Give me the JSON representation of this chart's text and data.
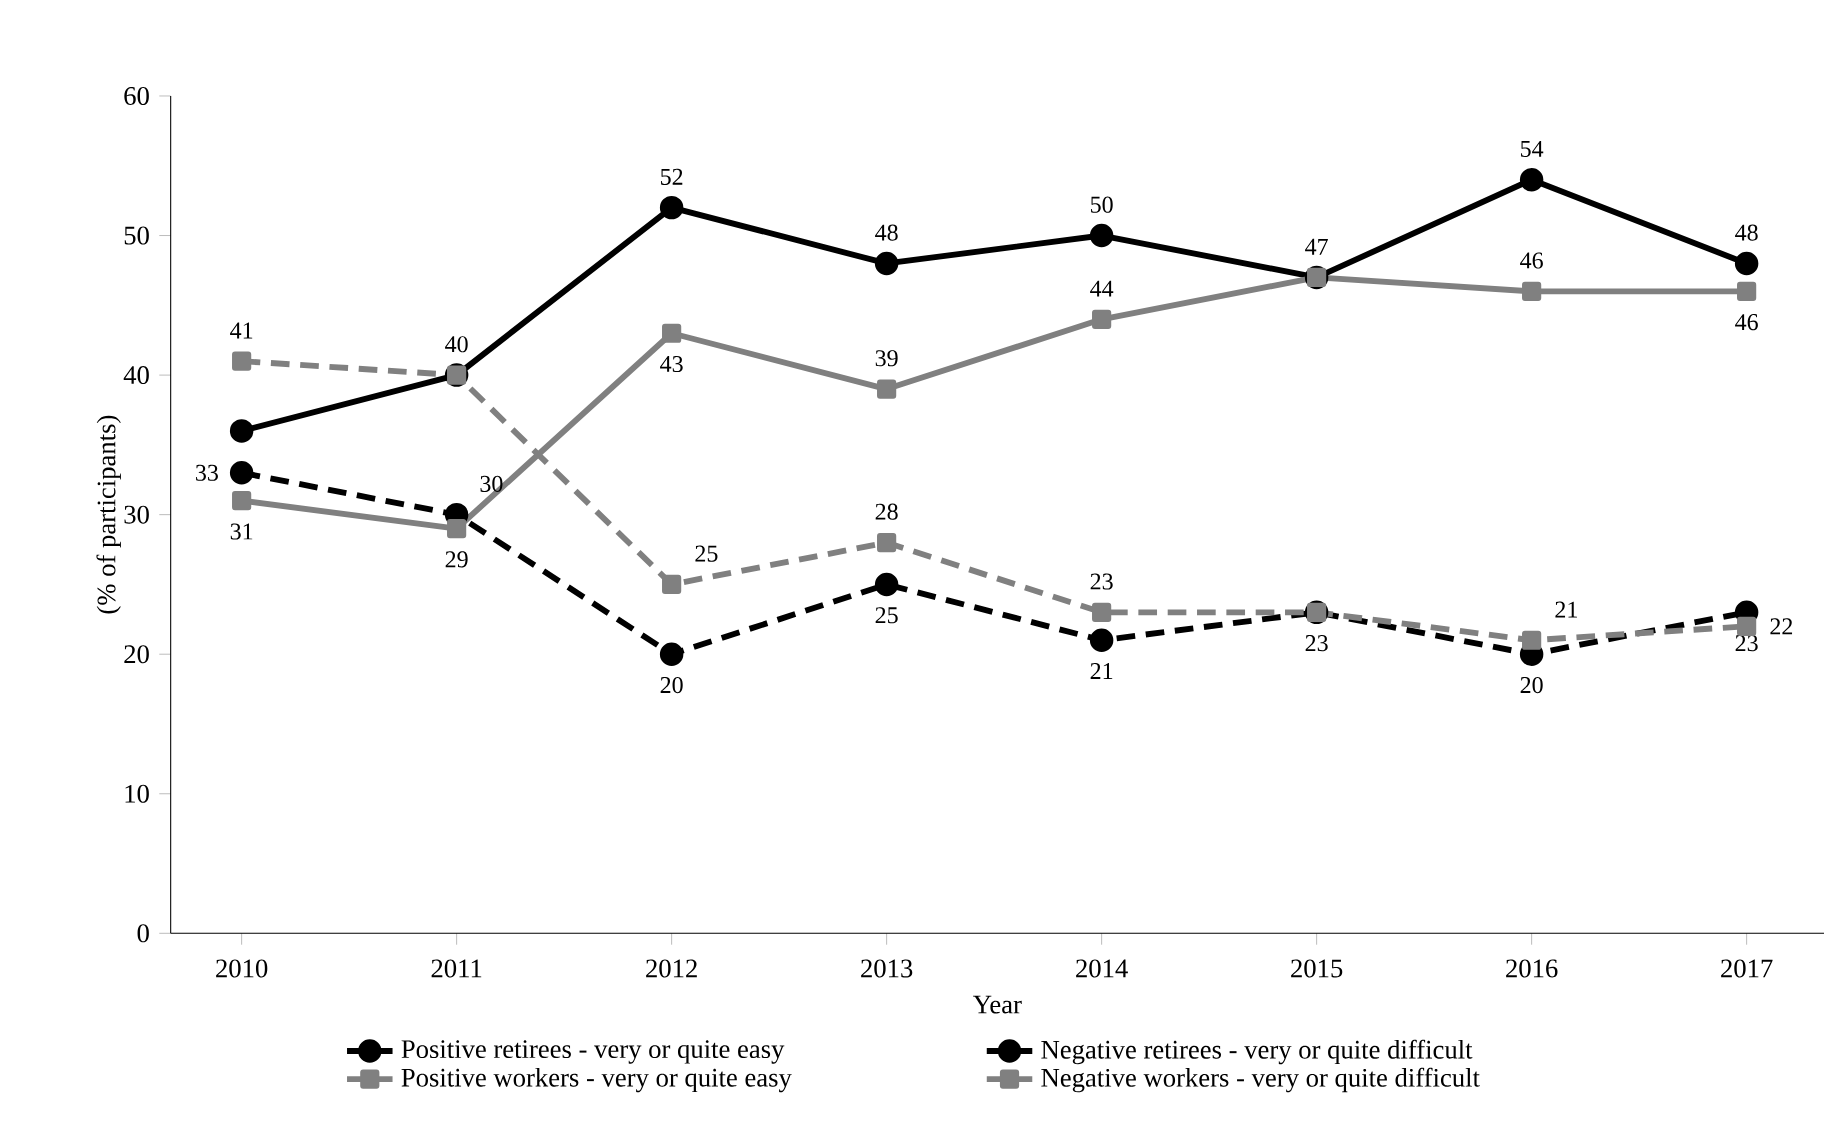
{
  "chart_data": {
    "type": "line",
    "xlabel": "Year",
    "ylabel": "(% of participants)",
    "categories": [
      "2010",
      "2011",
      "2012",
      "2013",
      "2014",
      "2015",
      "2016",
      "2017"
    ],
    "ylim": [
      0,
      60
    ],
    "yticks": [
      0,
      10,
      20,
      30,
      40,
      50,
      60
    ],
    "grid": false,
    "legend": "bottom",
    "series": [
      {
        "name": "Positive retirees - very or quite easy",
        "color": "#000000",
        "marker": "circle",
        "line_style": "solid",
        "values": [
          36,
          40,
          52,
          48,
          50,
          47,
          54,
          48
        ],
        "value_labels": [
          null,
          "40",
          "52",
          "48",
          "50",
          null,
          "54",
          "48"
        ]
      },
      {
        "name": "Negative retirees - very or quite difficult",
        "color": "#000000",
        "marker": "circle",
        "line_style": "dashed",
        "values": [
          33,
          30,
          20,
          25,
          21,
          23,
          20,
          23
        ],
        "value_labels": [
          "33",
          "30",
          "20",
          "25",
          "21",
          "23",
          "20",
          "23"
        ]
      },
      {
        "name": "Positive workers - very or quite easy",
        "color": "#808080",
        "marker": "square",
        "line_style": "solid",
        "values": [
          31,
          29,
          43,
          39,
          44,
          47,
          46,
          46
        ],
        "value_labels": [
          "31",
          "29",
          "43",
          "39",
          "44",
          "47",
          "46",
          "46"
        ]
      },
      {
        "name": "Negative workers - very or quite difficult",
        "color": "#808080",
        "marker": "square",
        "line_style": "dashed",
        "values": [
          41,
          40,
          25,
          28,
          23,
          23,
          21,
          22
        ],
        "value_labels": [
          "41",
          null,
          "25",
          "28",
          "23",
          null,
          "21",
          "22"
        ]
      }
    ]
  }
}
